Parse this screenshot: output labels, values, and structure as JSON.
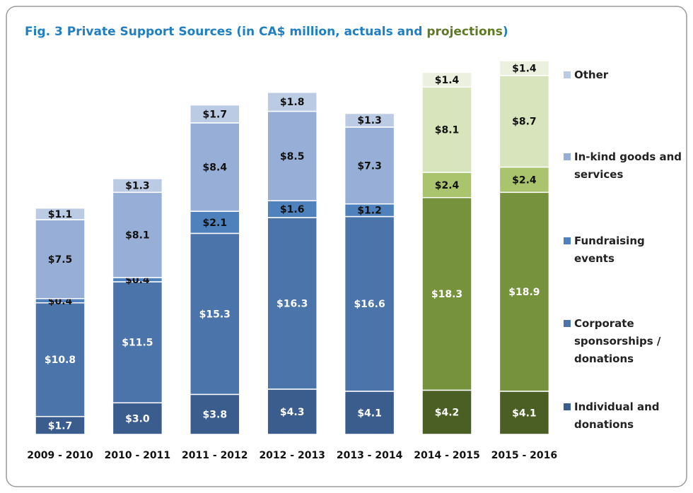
{
  "chart_data": {
    "type": "stacked_bar",
    "title": [
      "Fig. 3 Private Support Sources (in CA$ million, actuals and ",
      "projections",
      ")"
    ],
    "title_colors": [
      "#1f7fc0",
      "#5e7a23",
      "#1f7fc0"
    ],
    "categories": [
      "2009 - 2010",
      "2010 - 2011",
      "2011 - 2012",
      "2012 - 2013",
      "2013 - 2014",
      "2014 - 2015",
      "2015 - 2016"
    ],
    "projected": [
      false,
      false,
      false,
      false,
      false,
      true,
      true
    ],
    "legend": "right",
    "series": [
      {
        "name": "Individual and donations",
        "color": "#3a5d8e",
        "projection_color": "#4b5f24",
        "label_color": "#ffffff",
        "values": [
          1.7,
          3.0,
          3.8,
          4.3,
          4.1,
          4.2,
          4.1
        ],
        "value_labels": [
          "$1.7",
          "$3.0",
          "$3.8",
          "$4.3",
          "$4.1",
          "$4.2",
          "$4.1"
        ]
      },
      {
        "name": "Corporate sponsorships / donations",
        "color": "#4a74aa",
        "projection_color": "#76923c",
        "label_color": "#ffffff",
        "values": [
          10.8,
          11.5,
          15.3,
          16.3,
          16.6,
          18.3,
          18.9
        ],
        "value_labels": [
          "$10.8",
          "$11.5",
          "$15.3",
          "$16.3",
          "$16.6",
          "$18.3",
          "$18.9"
        ]
      },
      {
        "name": "Fundraising events",
        "color": "#4f81bd",
        "projection_color": "#a9c46c",
        "label_color": "#111111",
        "values": [
          0.4,
          0.4,
          2.1,
          1.6,
          1.2,
          2.4,
          2.4
        ],
        "value_labels": [
          "$0.4",
          "$0.4",
          "$2.1",
          "$1.6",
          "$1.2",
          "$2.4",
          "$2.4"
        ]
      },
      {
        "name": "In-kind goods and services",
        "color": "#97afd7",
        "projection_color": "#d7e4bc",
        "label_color": "#111111",
        "values": [
          7.5,
          8.1,
          8.4,
          8.5,
          7.3,
          8.1,
          8.7
        ],
        "value_labels": [
          "$7.5",
          "$8.1",
          "$8.4",
          "$8.5",
          "$7.3",
          "$8.1",
          "$8.7"
        ]
      },
      {
        "name": "Other",
        "color": "#bccbe4",
        "projection_color": "#ebf1de",
        "label_color": "#111111",
        "values": [
          1.1,
          1.3,
          1.7,
          1.8,
          1.3,
          1.4,
          1.4
        ],
        "value_labels": [
          "$1.1",
          "$1.3",
          "$1.7",
          "$1.8",
          "$1.3",
          "$1.4",
          "$1.4"
        ]
      }
    ]
  }
}
